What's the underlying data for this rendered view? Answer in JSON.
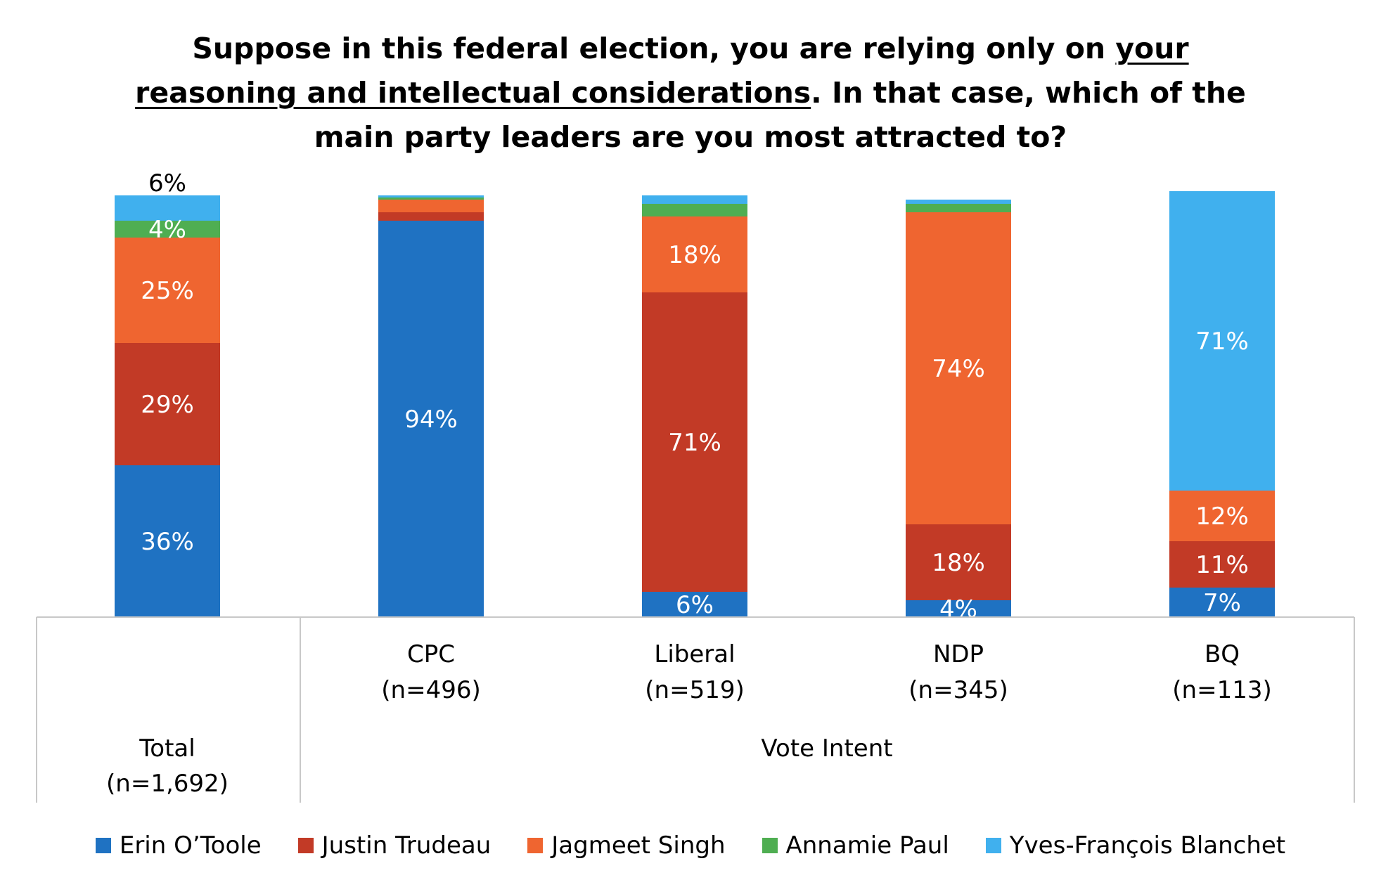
{
  "chart_data": {
    "type": "bar",
    "stacked": true,
    "title_parts": [
      {
        "text": "Suppose in this federal election, you are relying only on ",
        "underline": false
      },
      {
        "text": "your reasoning and intellectual considerations",
        "underline": true
      },
      {
        "text": ". In that case, which of the main party leaders are you most attracted to?",
        "underline": false
      }
    ],
    "categories": [
      {
        "label": "Total",
        "sub": "(n=1,692)"
      },
      {
        "label": "CPC",
        "sub": "(n=496)"
      },
      {
        "label": "Liberal",
        "sub": "(n=519)"
      },
      {
        "label": "NDP",
        "sub": "(n=345)"
      },
      {
        "label": "BQ",
        "sub": "(n=113)"
      }
    ],
    "group_label": "Vote Intent",
    "ylim": [
      0,
      100
    ],
    "series": [
      {
        "name": "Erin O’Toole",
        "color": "#1f72c2",
        "values": [
          36,
          94,
          6,
          4,
          7
        ],
        "labels": [
          "36%",
          "94%",
          "6%",
          "4%",
          "7%"
        ]
      },
      {
        "name": "Justin Trudeau",
        "color": "#c23a26",
        "values": [
          29,
          2,
          71,
          18,
          11
        ],
        "labels": [
          "29%",
          "",
          "71%",
          "18%",
          "11%"
        ]
      },
      {
        "name": "Jagmeet Singh",
        "color": "#ef6530",
        "values": [
          25,
          3,
          18,
          74,
          12
        ],
        "labels": [
          "25%",
          "",
          "18%",
          "74%",
          "12%"
        ]
      },
      {
        "name": "Annamie Paul",
        "color": "#4fae52",
        "values": [
          4,
          0.5,
          3,
          2,
          0
        ],
        "labels": [
          "4%",
          "",
          "",
          "",
          ""
        ]
      },
      {
        "name": "Yves-François Blanchet",
        "color": "#40b0ee",
        "values": [
          6,
          0.5,
          2,
          1,
          71
        ],
        "labels": [
          "6%",
          "",
          "",
          "",
          "71%"
        ]
      }
    ],
    "legend": {
      "position": "bottom"
    }
  }
}
